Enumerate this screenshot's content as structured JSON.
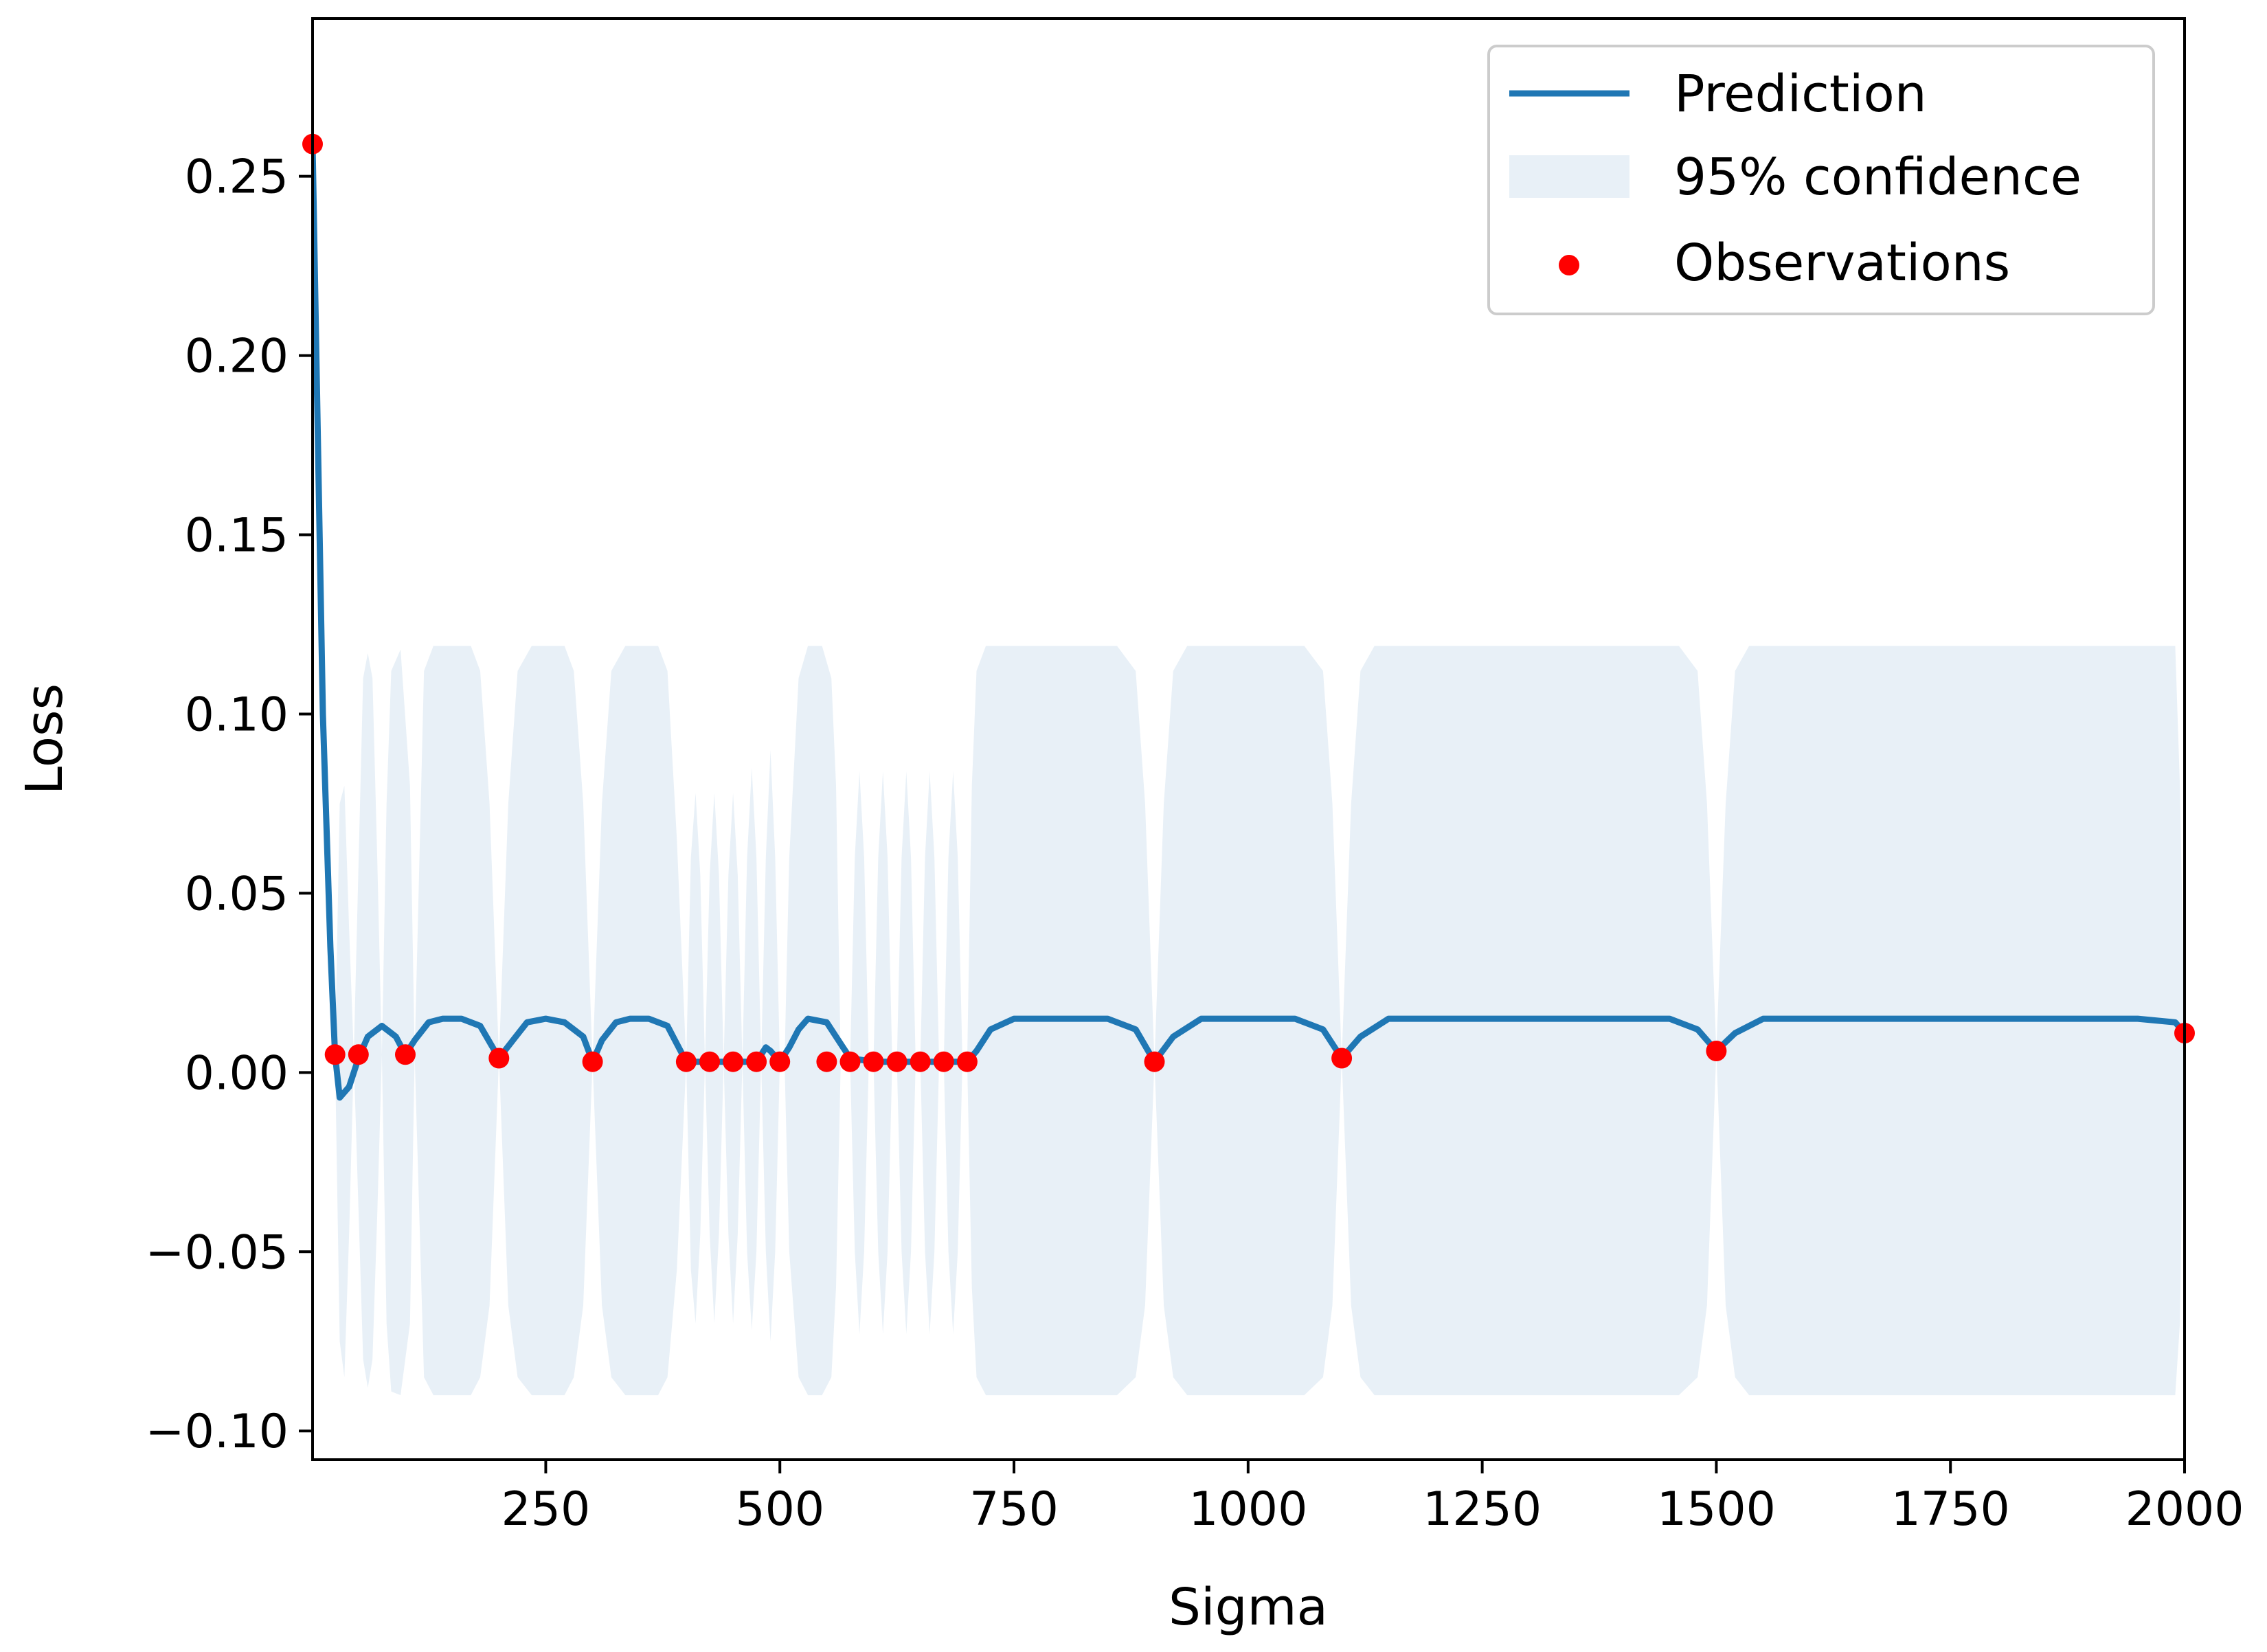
{
  "chart_data": {
    "type": "line",
    "title": "",
    "xlabel": "Sigma",
    "ylabel": "Loss",
    "xlim": [
      1,
      2000
    ],
    "ylim": [
      -0.108,
      0.294
    ],
    "grid": false,
    "legend_placement": "top-right",
    "xticks": [
      250,
      500,
      750,
      1000,
      1250,
      1500,
      1750,
      2000
    ],
    "yticks": [
      -0.1,
      -0.05,
      0.0,
      0.05,
      0.1,
      0.15,
      0.2,
      0.25
    ],
    "xtick_labels": [
      "250",
      "500",
      "750",
      "1000",
      "1250",
      "1500",
      "1750",
      "2000"
    ],
    "ytick_labels": [
      "−0.10",
      "−0.05",
      "0.00",
      "0.05",
      "0.10",
      "0.15",
      "0.20",
      "0.25"
    ],
    "series": [
      {
        "name": "Prediction",
        "kind": "line",
        "color": "#1f77b4",
        "plateau_value": 0.015,
        "x": [
          1,
          5,
          12,
          20,
          25,
          30,
          40,
          50,
          60,
          75,
          90,
          100,
          110,
          125,
          140,
          160,
          180,
          200,
          215,
          230,
          250,
          270,
          290,
          300,
          310,
          325,
          340,
          360,
          380,
          400,
          420,
          440,
          460,
          470,
          480,
          485,
          490,
          500,
          510,
          520,
          530,
          550,
          560,
          575,
          600,
          625,
          650,
          675,
          700,
          710,
          725,
          750,
          800,
          850,
          880,
          900,
          920,
          950,
          1000,
          1050,
          1080,
          1100,
          1120,
          1150,
          1300,
          1450,
          1480,
          1500,
          1520,
          1550,
          1700,
          1850,
          1950,
          1990,
          2000
        ],
        "y": [
          0.259,
          0.2,
          0.1,
          0.035,
          0.005,
          -0.007,
          -0.004,
          0.004,
          0.01,
          0.013,
          0.01,
          0.005,
          0.009,
          0.014,
          0.015,
          0.015,
          0.013,
          0.004,
          0.009,
          0.014,
          0.015,
          0.014,
          0.01,
          0.003,
          0.009,
          0.014,
          0.015,
          0.015,
          0.013,
          0.003,
          0.003,
          0.003,
          0.003,
          0.003,
          0.005,
          0.007,
          0.006,
          0.003,
          0.007,
          0.012,
          0.015,
          0.014,
          0.01,
          0.004,
          0.003,
          0.003,
          0.003,
          0.003,
          0.003,
          0.006,
          0.012,
          0.015,
          0.015,
          0.015,
          0.012,
          0.003,
          0.01,
          0.015,
          0.015,
          0.015,
          0.012,
          0.004,
          0.01,
          0.015,
          0.015,
          0.015,
          0.012,
          0.006,
          0.011,
          0.015,
          0.015,
          0.015,
          0.015,
          0.014,
          0.011
        ]
      },
      {
        "name": "95% confidence",
        "kind": "band",
        "color": "#e8f0f7",
        "x": [
          1,
          25,
          30,
          35,
          40,
          45,
          55,
          60,
          65,
          70,
          75,
          80,
          85,
          95,
          105,
          110,
          120,
          130,
          140,
          160,
          170,
          180,
          190,
          200,
          210,
          220,
          235,
          260,
          270,
          280,
          290,
          300,
          310,
          320,
          335,
          360,
          370,
          380,
          390,
          400,
          405,
          410,
          415,
          420,
          425,
          430,
          435,
          440,
          445,
          450,
          455,
          460,
          465,
          470,
          475,
          480,
          485,
          490,
          495,
          500,
          505,
          510,
          520,
          530,
          545,
          555,
          560,
          565,
          575,
          580,
          585,
          590,
          595,
          600,
          605,
          610,
          615,
          620,
          625,
          630,
          635,
          640,
          645,
          650,
          655,
          660,
          665,
          670,
          675,
          680,
          685,
          690,
          695,
          700,
          705,
          710,
          720,
          735,
          860,
          880,
          890,
          900,
          910,
          920,
          935,
          1060,
          1080,
          1090,
          1100,
          1110,
          1120,
          1135,
          1460,
          1480,
          1490,
          1500,
          1510,
          1520,
          1535,
          1990,
          1995,
          2000
        ],
        "upper": [
          0.259,
          0.005,
          0.075,
          0.08,
          0.04,
          0.005,
          0.11,
          0.117,
          0.11,
          0.06,
          0.005,
          0.075,
          0.112,
          0.118,
          0.08,
          0.005,
          0.112,
          0.119,
          0.119,
          0.119,
          0.119,
          0.112,
          0.075,
          0.004,
          0.075,
          0.112,
          0.119,
          0.119,
          0.119,
          0.112,
          0.075,
          0.003,
          0.075,
          0.112,
          0.119,
          0.119,
          0.119,
          0.112,
          0.065,
          0.003,
          0.06,
          0.078,
          0.055,
          0.003,
          0.055,
          0.078,
          0.055,
          0.003,
          0.055,
          0.078,
          0.055,
          0.003,
          0.06,
          0.085,
          0.06,
          0.003,
          0.06,
          0.09,
          0.06,
          0.003,
          0.003,
          0.06,
          0.11,
          0.119,
          0.119,
          0.11,
          0.08,
          0.003,
          0.003,
          0.06,
          0.084,
          0.06,
          0.003,
          0.003,
          0.06,
          0.084,
          0.06,
          0.003,
          0.003,
          0.06,
          0.084,
          0.06,
          0.003,
          0.003,
          0.06,
          0.084,
          0.06,
          0.003,
          0.003,
          0.06,
          0.084,
          0.06,
          0.003,
          0.003,
          0.08,
          0.112,
          0.119,
          0.119,
          0.119,
          0.112,
          0.075,
          0.003,
          0.075,
          0.112,
          0.119,
          0.119,
          0.112,
          0.075,
          0.004,
          0.075,
          0.112,
          0.119,
          0.119,
          0.112,
          0.075,
          0.006,
          0.075,
          0.112,
          0.119,
          0.119,
          0.08,
          0.011
        ],
        "lower": [
          0.259,
          0.005,
          -0.075,
          -0.085,
          -0.045,
          0.004,
          -0.08,
          -0.088,
          -0.08,
          -0.04,
          0.005,
          -0.07,
          -0.089,
          -0.09,
          -0.07,
          0.005,
          -0.085,
          -0.09,
          -0.09,
          -0.09,
          -0.09,
          -0.085,
          -0.065,
          0.004,
          -0.065,
          -0.085,
          -0.09,
          -0.09,
          -0.09,
          -0.085,
          -0.065,
          0.003,
          -0.065,
          -0.085,
          -0.09,
          -0.09,
          -0.09,
          -0.085,
          -0.055,
          0.003,
          -0.055,
          -0.07,
          -0.045,
          0.003,
          -0.045,
          -0.07,
          -0.045,
          0.003,
          -0.045,
          -0.07,
          -0.045,
          0.003,
          -0.05,
          -0.072,
          -0.05,
          0.003,
          -0.05,
          -0.075,
          -0.05,
          0.003,
          0.003,
          -0.05,
          -0.085,
          -0.09,
          -0.09,
          -0.085,
          -0.06,
          0.003,
          0.003,
          -0.05,
          -0.073,
          -0.05,
          0.003,
          0.003,
          -0.05,
          -0.073,
          -0.05,
          0.003,
          0.003,
          -0.05,
          -0.073,
          -0.05,
          0.003,
          0.003,
          -0.05,
          -0.073,
          -0.05,
          0.003,
          0.003,
          -0.05,
          -0.073,
          -0.05,
          0.003,
          0.003,
          -0.06,
          -0.085,
          -0.09,
          -0.09,
          -0.09,
          -0.085,
          -0.065,
          0.003,
          -0.065,
          -0.085,
          -0.09,
          -0.09,
          -0.085,
          -0.065,
          0.004,
          -0.065,
          -0.085,
          -0.09,
          -0.09,
          -0.085,
          -0.065,
          0.006,
          -0.065,
          -0.085,
          -0.09,
          -0.09,
          -0.07,
          0.011
        ]
      },
      {
        "name": "Observations",
        "kind": "scatter",
        "color": "#ff0000",
        "x": [
          1,
          25,
          50,
          100,
          200,
          300,
          400,
          425,
          450,
          475,
          500,
          550,
          575,
          600,
          625,
          650,
          675,
          700,
          900,
          1100,
          1500,
          2000
        ],
        "y": [
          0.259,
          0.005,
          0.005,
          0.005,
          0.004,
          0.003,
          0.003,
          0.003,
          0.003,
          0.003,
          0.003,
          0.003,
          0.003,
          0.003,
          0.003,
          0.003,
          0.003,
          0.003,
          0.003,
          0.004,
          0.006,
          0.011
        ]
      }
    ]
  }
}
